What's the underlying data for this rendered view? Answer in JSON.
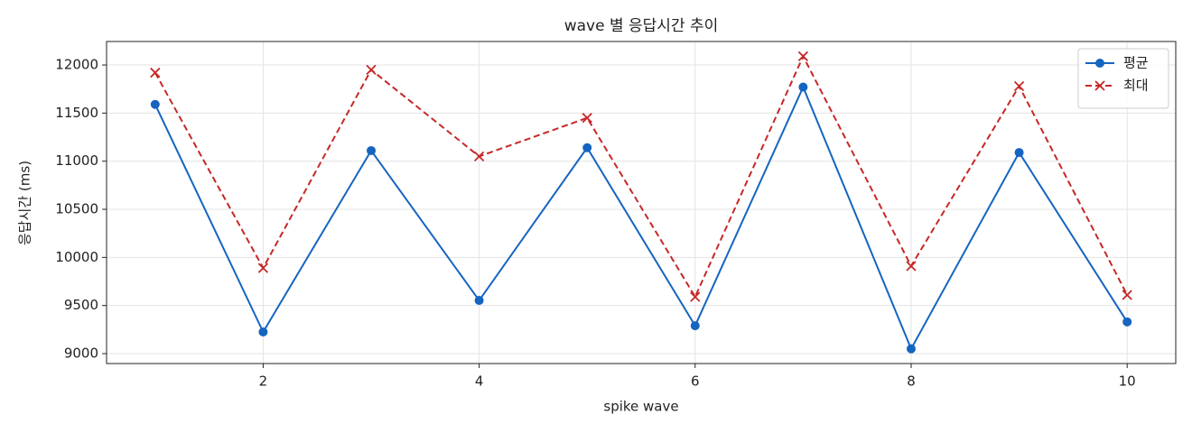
{
  "chart_data": {
    "type": "line",
    "title": "wave 별 응답시간 추이",
    "x_label": "spike wave",
    "y_label": "응답시간 (ms)",
    "x": [
      1,
      2,
      3,
      4,
      5,
      6,
      7,
      8,
      9,
      10
    ],
    "series": [
      {
        "name": "평균",
        "color": "#1565c0",
        "marker": "o",
        "linestyle": "solid",
        "values": [
          11590,
          9225,
          11110,
          9553,
          11140,
          9290,
          11770,
          9050,
          11090,
          9330
        ]
      },
      {
        "name": "최대",
        "color": "#c62828",
        "marker": "x",
        "linestyle": "dashed",
        "values": [
          11920,
          9890,
          11950,
          11050,
          11450,
          9590,
          12090,
          9910,
          11780,
          9610
        ]
      }
    ],
    "xlim": [
      0.55,
      10.45
    ],
    "xticks": [
      2,
      4,
      6,
      8,
      10
    ],
    "ylim": [
      8897,
      12244
    ],
    "yticks": [
      9000,
      9500,
      10000,
      10500,
      11000,
      11500,
      12000
    ],
    "grid": true,
    "legend": "upper right"
  }
}
